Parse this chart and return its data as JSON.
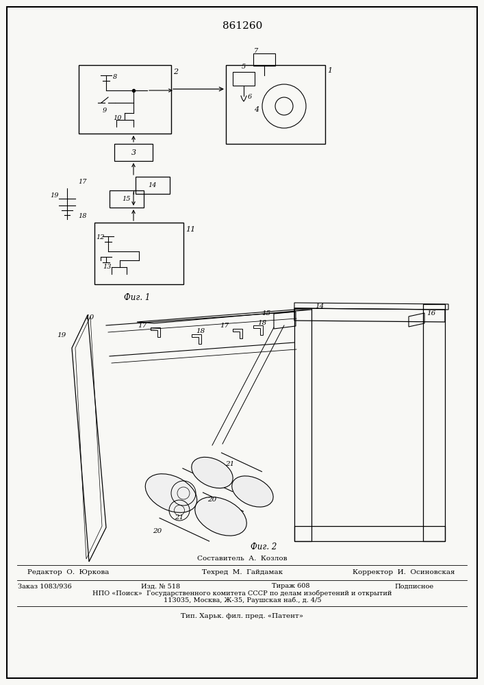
{
  "patent_number": "861260",
  "background_color": "#f8f8f5",
  "border_color": "#000000",
  "text_color": "#000000",
  "footer": {
    "compiler": "Составитель  А.  Козлов",
    "editor": "Редактор  О.  Юркова",
    "techred": "Техред  М.  Гайдамак",
    "corrector": "Корректор  И.  Осиновская",
    "order": "Заказ 1083/936",
    "izdanie": "Изд. № 518",
    "tirazh": "Тираж 608",
    "podpisnoe": "Подписное",
    "npo": "НПО «Поиск»  Государственного комитета СССР по делам изобретений и открытий",
    "address": "113035, Москва, Ж-35, Раушская наб., д. 4/5",
    "tip": "Тип. Харьк. фил. пред. «Патент»"
  },
  "fig1_label": "Фиг. 1",
  "fig2_label": "Фиг. 2"
}
